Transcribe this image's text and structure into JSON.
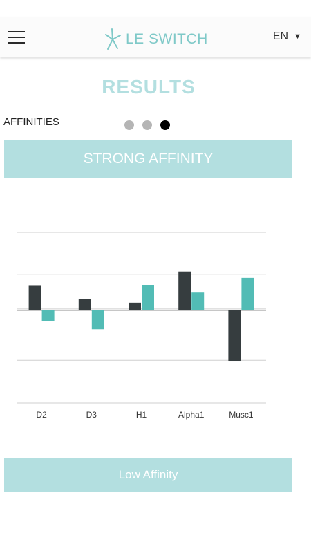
{
  "header": {
    "logo_text": "LE SWITCH",
    "language": "EN",
    "menu_icon": "hamburger-icon",
    "logo_icon": "star-burst-icon",
    "language_caret_icon": "caret-down-icon"
  },
  "page": {
    "title": "RESULTS",
    "section_label": "AFFINITIES",
    "pager": {
      "count": 3,
      "active_index": 2
    }
  },
  "banners": {
    "top": "STRONG AFFINITY",
    "bottom": "Low Affinity"
  },
  "colors": {
    "accent_light": "#b3dfe0",
    "logo": "#7fc9c8",
    "series_dark": "#363d3f",
    "series_teal": "#52bcb5",
    "dot_inactive": "#b5b5b5",
    "dot_active": "#000000"
  },
  "chart_data": {
    "type": "bar",
    "categories": [
      "D2",
      "D3",
      "H1",
      "Alpha1",
      "Musc1"
    ],
    "series": [
      {
        "values": [
          0.58,
          0.26,
          0.18,
          0.92,
          -1.2
        ]
      },
      {
        "values": [
          -0.26,
          -0.45,
          0.6,
          0.42,
          0.77
        ]
      }
    ],
    "ylim": [
      -2.2,
      1.85
    ],
    "grid": true,
    "legend": false
  }
}
